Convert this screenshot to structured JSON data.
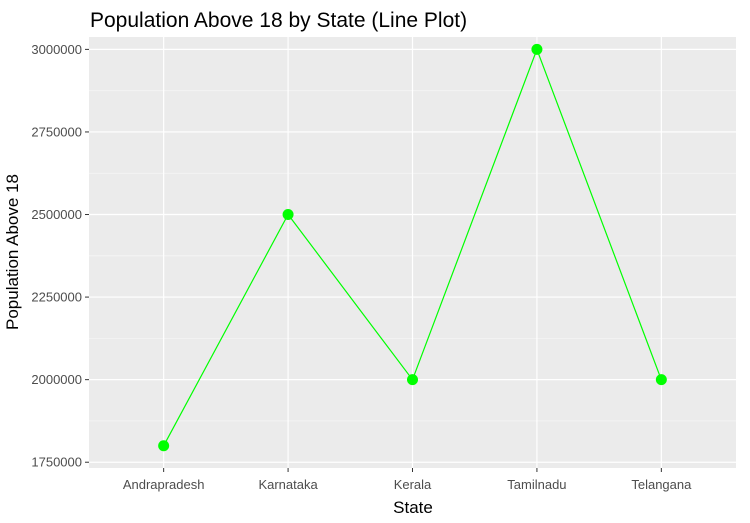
{
  "chart_data": {
    "type": "line",
    "title": "Population Above 18 by State (Line Plot)",
    "xlabel": "State",
    "ylabel": "Population Above 18",
    "categories": [
      "Andrapradesh",
      "Karnataka",
      "Kerala",
      "Tamilnadu",
      "Telangana"
    ],
    "values": [
      1800000,
      2500000,
      2000000,
      3000000,
      2000000
    ],
    "ylim": [
      1732500,
      3037500
    ],
    "yticks": [
      1750000,
      2000000,
      2250000,
      2500000,
      2750000,
      3000000
    ],
    "ytick_labels": [
      "1750000",
      "2000000",
      "2250000",
      "2500000",
      "2750000",
      "3000000"
    ],
    "grid": true,
    "colors": {
      "line": "#00FF00",
      "point": "#00FF00",
      "panel_background": "#EBEBEB",
      "grid_major": "#FFFFFF",
      "grid_minor": "#F5F5F5"
    }
  }
}
